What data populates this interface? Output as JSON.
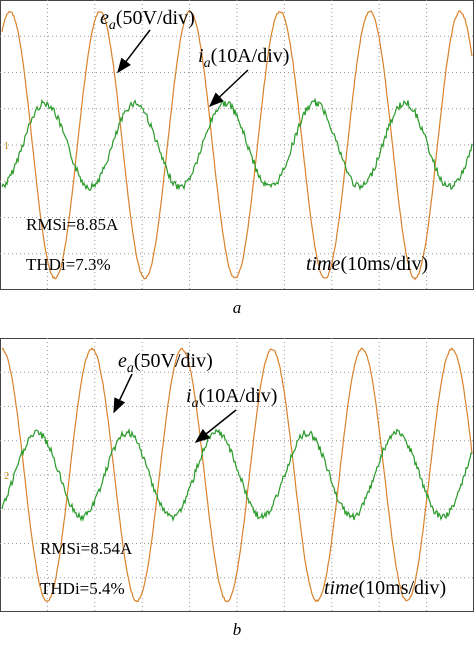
{
  "panels": [
    {
      "voltage_label": {
        "symbol": "e",
        "subscript": "a",
        "scale": "(50V/div)"
      },
      "current_label": {
        "symbol": "i",
        "subscript": "a",
        "scale": "(10A/div)"
      },
      "rms": "RMSi=8.85A",
      "thd": "THDi=7.3%",
      "time_label": {
        "symbol": "time",
        "scale": "(10ms/div)"
      },
      "channel_marker": "1",
      "caption": "a"
    },
    {
      "voltage_label": {
        "symbol": "e",
        "subscript": "a",
        "scale": "(50V/div)"
      },
      "current_label": {
        "symbol": "i",
        "subscript": "a",
        "scale": "(10A/div)"
      },
      "rms": "RMSi=8.54A",
      "thd": "THDi=5.4%",
      "time_label": {
        "symbol": "time",
        "scale": "(10ms/div)"
      },
      "channel_marker": "2",
      "caption": "b"
    }
  ]
}
